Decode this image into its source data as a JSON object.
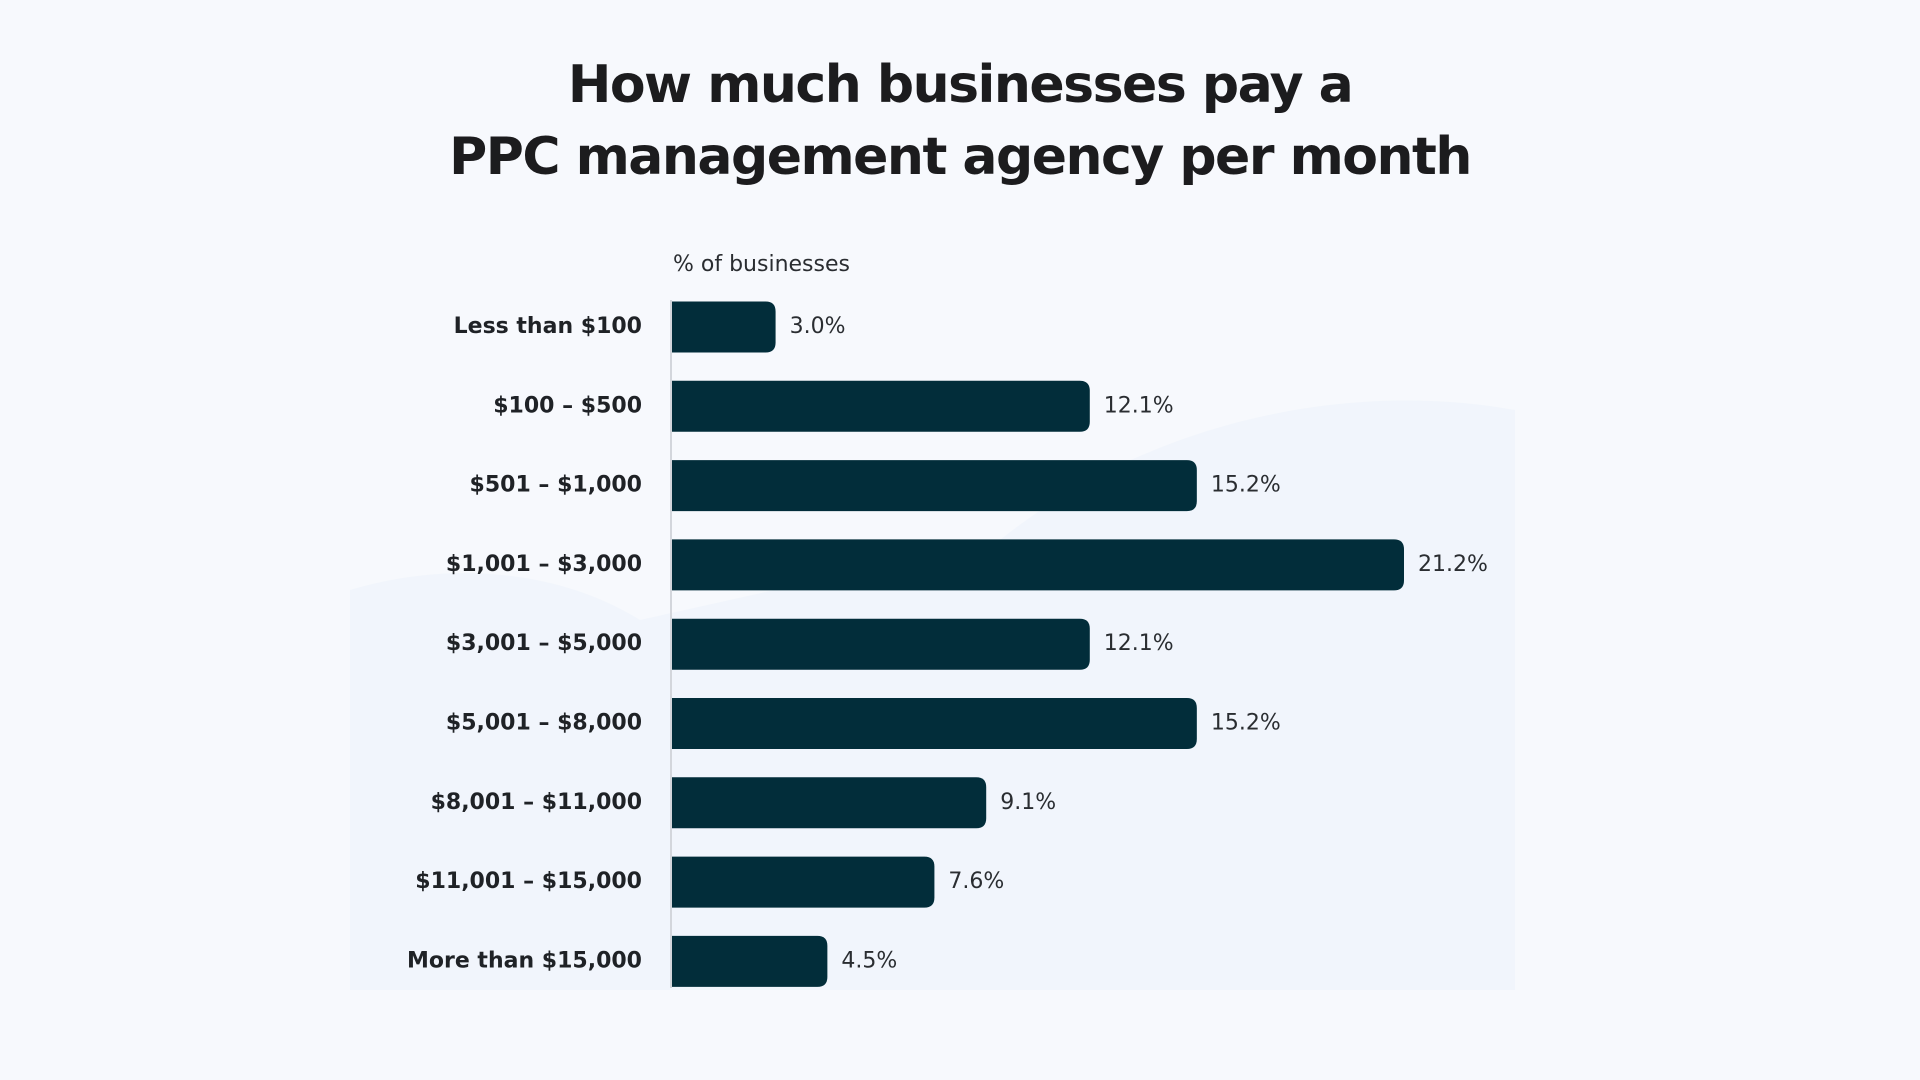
{
  "chart_data": {
    "type": "bar",
    "orientation": "horizontal",
    "title": [
      "How much businesses pay a",
      "PPC management agency per month"
    ],
    "axis_label": "% of businesses",
    "categories": [
      "Less than $100",
      "$100 – $500",
      "$501 – $1,000",
      "$1,001 – $3,000",
      "$3,001 – $5,000",
      "$5,001 – $8,000",
      "$8,001 – $11,000",
      "$11,001 – $15,000",
      "More than $15,000"
    ],
    "values": [
      3.0,
      12.1,
      15.2,
      21.2,
      12.1,
      15.2,
      9.1,
      7.6,
      4.5
    ],
    "value_labels": [
      "3.0%",
      "12.1%",
      "15.2%",
      "21.2%",
      "12.1%",
      "15.2%",
      "9.1%",
      "7.6%",
      "4.5%"
    ],
    "color": "#022d3a"
  }
}
